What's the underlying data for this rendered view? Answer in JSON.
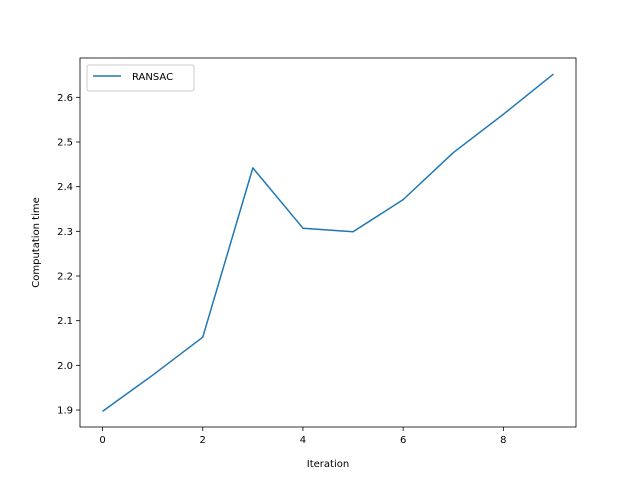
{
  "chart_data": {
    "type": "line",
    "title": "",
    "xlabel": "Iteration",
    "ylabel": "Computation time",
    "xlim": [
      -0.45,
      9.45
    ],
    "ylim": [
      1.862,
      2.688
    ],
    "xticks": [
      0,
      2,
      4,
      6,
      8
    ],
    "xtick_labels": [
      "0",
      "2",
      "4",
      "6",
      "8"
    ],
    "yticks": [
      1.9,
      2.0,
      2.1,
      2.2,
      2.3,
      2.4,
      2.5,
      2.6
    ],
    "ytick_labels": [
      "1.9",
      "2.0",
      "2.1",
      "2.2",
      "2.3",
      "2.4",
      "2.5",
      "2.6"
    ],
    "grid": false,
    "legend_position": "top-left",
    "series": [
      {
        "name": "RANSAC",
        "color": "#1f77b4",
        "x": [
          0,
          1,
          2,
          3,
          4,
          5,
          6,
          7,
          8,
          9
        ],
        "y": [
          1.897,
          1.978,
          2.063,
          2.442,
          2.307,
          2.299,
          2.371,
          2.476,
          2.562,
          2.652
        ]
      }
    ]
  }
}
